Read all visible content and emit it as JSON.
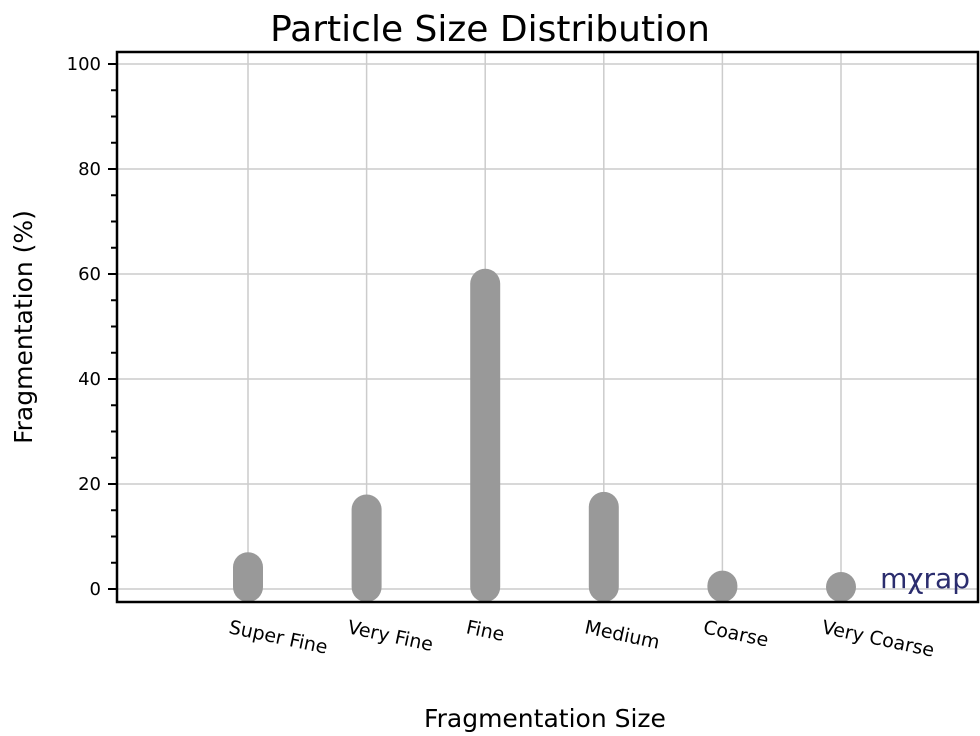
{
  "chart_data": {
    "type": "bar",
    "title": "Particle Size Distribution",
    "xlabel": "Fragmentation Size",
    "ylabel": "Fragmentation (%)",
    "categories": [
      "Super Fine",
      "Very Fine",
      "Fine",
      "Medium",
      "Coarse",
      "Very Coarse"
    ],
    "values": [
      7,
      18,
      61,
      18.5,
      3.5,
      2.5
    ],
    "ylim": [
      0,
      100
    ],
    "yticks": [
      0,
      20,
      40,
      60,
      80,
      100
    ],
    "grid": true,
    "bar_color": "#999999",
    "grid_color": "#cccccc"
  },
  "watermark": {
    "text": "mχrap",
    "color": "#2b2d6e"
  }
}
